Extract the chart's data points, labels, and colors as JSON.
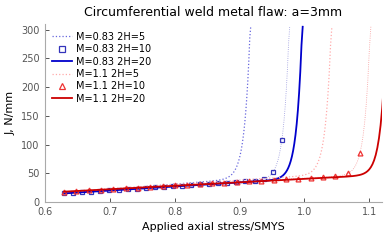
{
  "title": "Circumferential weld metal flaw: a=3mm",
  "xlabel": "Applied axial stress/SMYS",
  "ylabel": "J, N/mm",
  "xlim": [
    0.62,
    1.12
  ],
  "ylim": [
    0,
    310
  ],
  "xticks": [
    0.6,
    0.7,
    0.8,
    0.9,
    1.0,
    1.1
  ],
  "yticks": [
    0,
    50,
    100,
    150,
    200,
    250,
    300
  ],
  "curves": [
    {
      "label": "M=0.83 2H=5",
      "color": "#6666dd",
      "linestyle": "dotted",
      "marker": null,
      "x_knee": 0.87,
      "x_start": 0.63,
      "J_flat": 15.0,
      "k": 120.0
    },
    {
      "label": "M=0.83 2H=10",
      "color": "#3333bb",
      "linestyle": "none",
      "marker": "s",
      "x_knee": 0.93,
      "x_start": 0.63,
      "J_flat": 15.0,
      "k": 120.0
    },
    {
      "label": "M=0.83 2H=20",
      "color": "#0000cc",
      "linestyle": "solid",
      "marker": null,
      "x_knee": 0.95,
      "x_start": 0.63,
      "J_flat": 15.0,
      "k": 120.0
    },
    {
      "label": "M=1.1 2H=5",
      "color": "#ffaaaa",
      "linestyle": "dotted",
      "marker": null,
      "x_knee": 0.995,
      "x_start": 0.63,
      "J_flat": 18.0,
      "k": 120.0
    },
    {
      "label": "M=1.1 2H=10",
      "color": "#ee3333",
      "linestyle": "none",
      "marker": "^",
      "x_knee": 1.055,
      "x_start": 0.63,
      "J_flat": 18.0,
      "k": 120.0
    },
    {
      "label": "M=1.1 2H=20",
      "color": "#cc0000",
      "linestyle": "solid",
      "marker": null,
      "x_knee": 1.08,
      "x_start": 0.63,
      "J_flat": 18.0,
      "k": 120.0
    }
  ],
  "background_color": "#ffffff",
  "legend_fontsize": 7.0,
  "axis_fontsize": 8,
  "title_fontsize": 9
}
